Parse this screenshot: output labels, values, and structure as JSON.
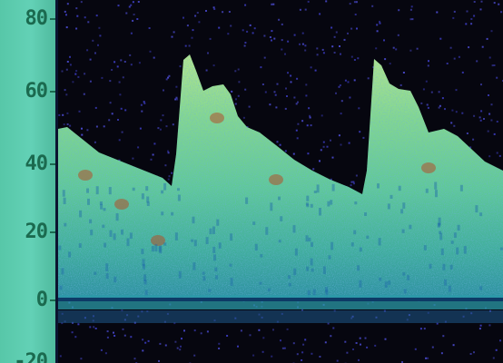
{
  "axis": {
    "ticks": [
      {
        "label": "80",
        "value": 80
      },
      {
        "label": "60",
        "value": 60
      },
      {
        "label": "40",
        "value": 40
      },
      {
        "label": "20",
        "value": 20
      },
      {
        "label": "0",
        "value": 0
      },
      {
        "label": "-20",
        "value": -20
      }
    ]
  },
  "colors": {
    "background": "#06060f",
    "speckle": "#3a3ab8",
    "signal_low": "#1f9c86",
    "signal_mid": "#5fd18a",
    "signal_high": "#9de07a",
    "hot_spot": "#b0502a",
    "axis_strip": "#5ccbb0",
    "axis_text": "#1b6a4f"
  }
}
